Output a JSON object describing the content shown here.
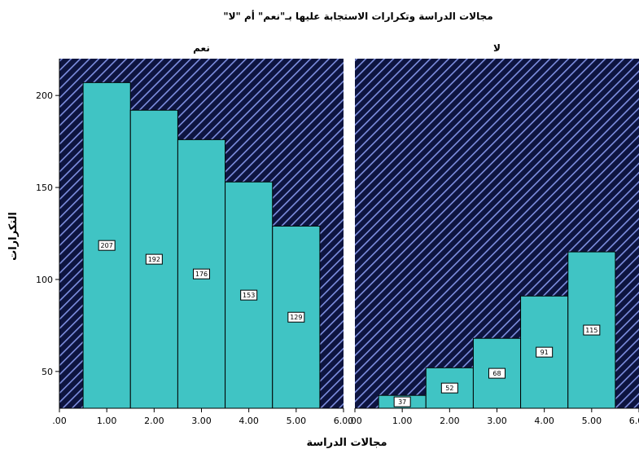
{
  "chart_data": {
    "type": "bar",
    "title": "مجالات الدراسة وتكرارات الاستجابة عليها بـ\"نعم\" أم \"لا\"",
    "xlabel": "مجالات الدراسة",
    "ylabel": "التكرارات",
    "x_tick_labels": [
      ".00",
      "1.00",
      "2.00",
      "3.00",
      "4.00",
      "5.00",
      "6.00"
    ],
    "y_tick_labels": [
      "50",
      "100",
      "150",
      "200"
    ],
    "xlim": [
      0,
      6
    ],
    "ylim": [
      30,
      220
    ],
    "panel_background": "#0d1440",
    "bar_color": "#40c4c4",
    "panels": [
      {
        "title": "نعم",
        "categories": [
          1,
          2,
          3,
          4,
          5
        ],
        "values": [
          207,
          192,
          176,
          153,
          129
        ]
      },
      {
        "title": "لا",
        "categories": [
          1,
          2,
          3,
          4,
          5
        ],
        "values": [
          37,
          52,
          68,
          91,
          115
        ]
      }
    ]
  }
}
